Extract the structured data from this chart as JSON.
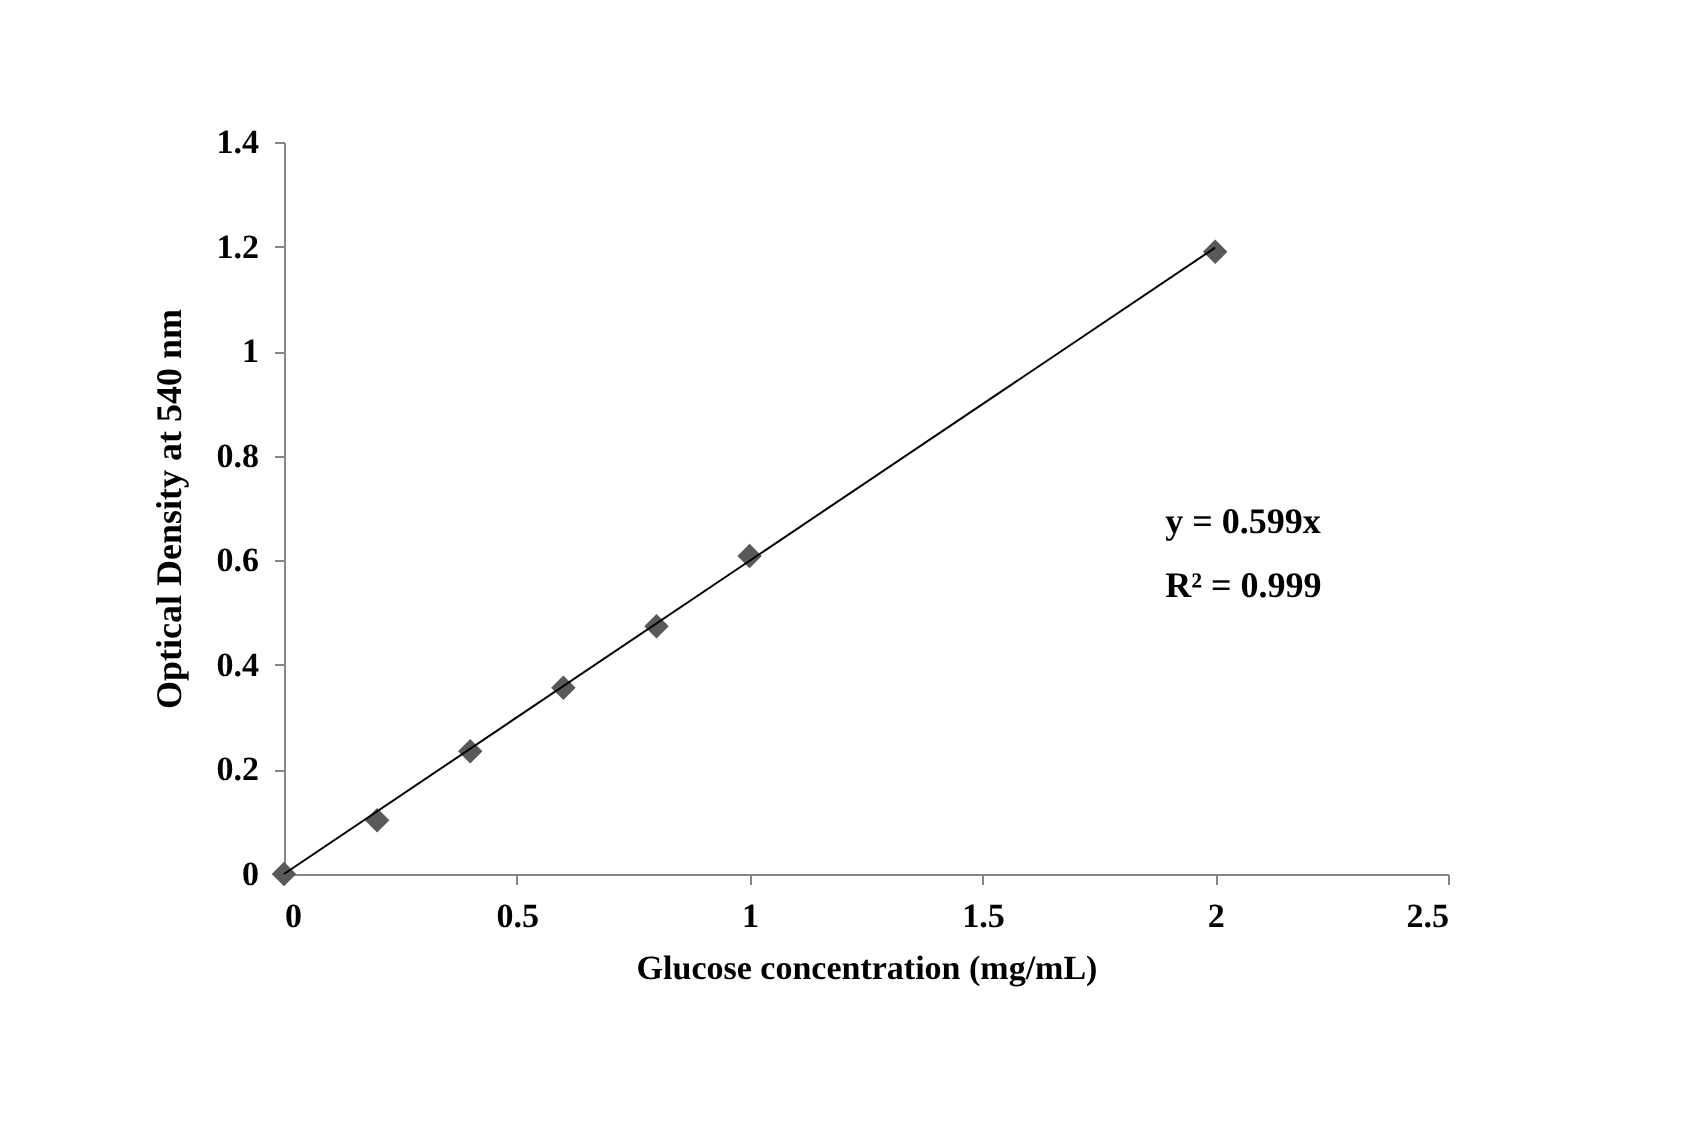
{
  "chart_data": {
    "type": "scatter",
    "xlabel": "Glucose concentration (mg/mL)",
    "ylabel": "Optical Density at 540 nm",
    "xlim": [
      0,
      2.5
    ],
    "xticks": [
      0,
      0.5,
      1,
      1.5,
      2,
      2.5
    ],
    "ylim": [
      0,
      1.4
    ],
    "yticks": [
      0,
      0.2,
      0.4,
      0.6,
      0.8,
      1,
      1.2,
      1.4
    ],
    "grid": false,
    "series": [
      {
        "marker": "diamond",
        "color": "#595959",
        "x": [
          0,
          0.2,
          0.4,
          0.6,
          0.8,
          1,
          2
        ],
        "values": [
          0,
          0.103,
          0.235,
          0.356,
          0.474,
          0.608,
          1.19
        ]
      },
      {
        "type": "line",
        "line_style": "solid",
        "color": "#000000",
        "x": [
          0,
          2
        ],
        "values": [
          0,
          1.198
        ]
      }
    ],
    "annotations": [
      "y = 0.599x",
      "R² = 0.999"
    ]
  }
}
